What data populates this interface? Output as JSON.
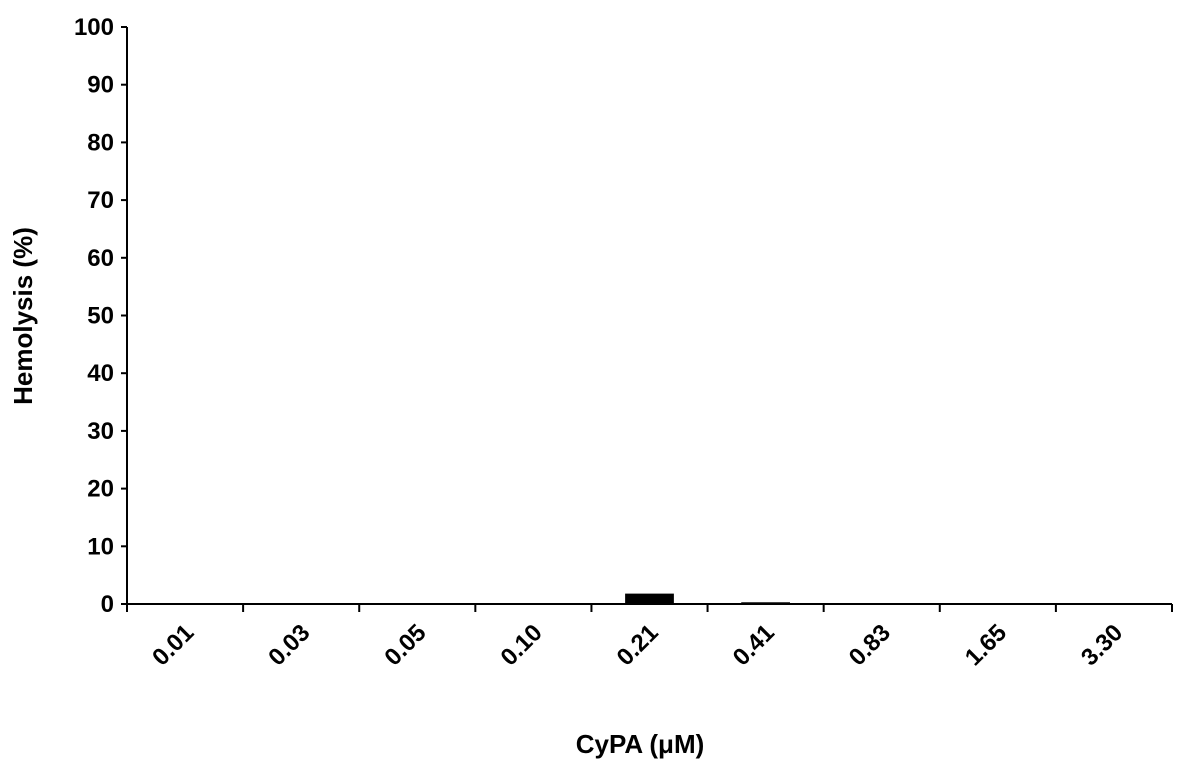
{
  "chart_data": {
    "type": "bar",
    "title": "",
    "xlabel": "CyPA (μM)",
    "ylabel": "Hemolysis (%)",
    "categories": [
      "0.01",
      "0.03",
      "0.05",
      "0.10",
      "0.21",
      "0.41",
      "0.83",
      "1.65",
      "3.30"
    ],
    "values": [
      0,
      0,
      0,
      0,
      1.8,
      0.3,
      0,
      0,
      0
    ],
    "ylim": [
      0,
      100
    ],
    "yticks": [
      "0",
      "10",
      "20",
      "30",
      "40",
      "50",
      "60",
      "70",
      "80",
      "90",
      "100"
    ],
    "grid": false,
    "legend": "none",
    "colors": {
      "bar": "#000000",
      "axis": "#000000",
      "background": "#ffffff"
    }
  }
}
